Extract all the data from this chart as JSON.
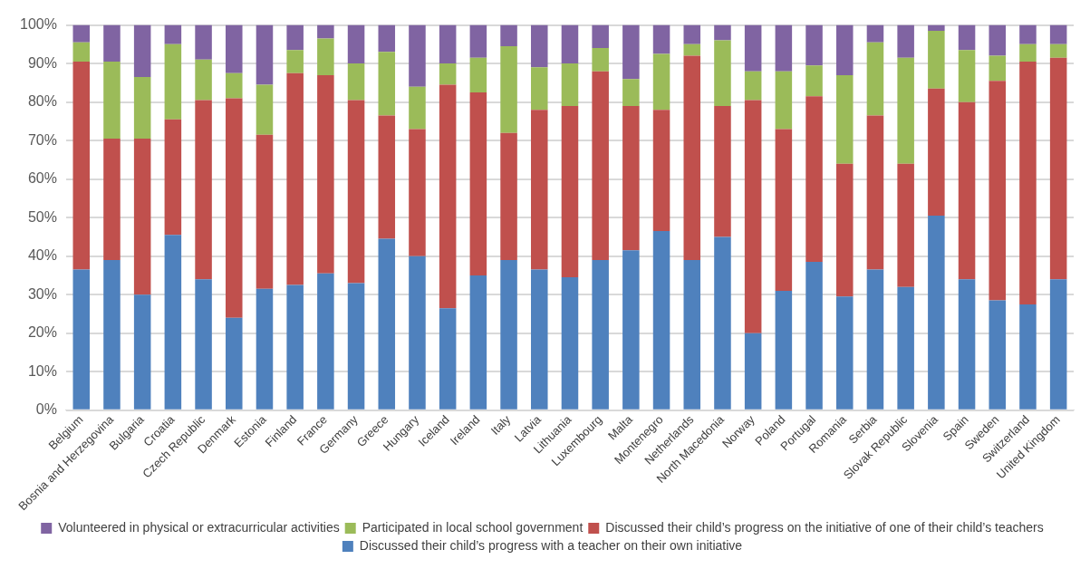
{
  "chart_data": {
    "type": "bar",
    "stacked": true,
    "grid": "y",
    "legend": "bottom",
    "categories": [
      "Belgium",
      "Bosnia and Herzegovina",
      "Bulgaria",
      "Croatia",
      "Czech Republic",
      "Denmark",
      "Estonia",
      "Finland",
      "France",
      "Germany",
      "Greece",
      "Hungary",
      "Iceland",
      "Ireland",
      "Italy",
      "Latvia",
      "Lithuania",
      "Luxembourg",
      "Malta",
      "Montenegro",
      "Netherlands",
      "North Macedonia",
      "Norway",
      "Poland",
      "Portugal",
      "Romania",
      "Serbia",
      "Slovak Republic",
      "Slovenia",
      "Spain",
      "Sweden",
      "Switzerland",
      "United Kingdom"
    ],
    "ylim": [
      0,
      100
    ],
    "yticks": [
      {
        "value": 0,
        "label": "0%"
      },
      {
        "value": 10,
        "label": "10%"
      },
      {
        "value": 20,
        "label": "20%"
      },
      {
        "value": 30,
        "label": "30%"
      },
      {
        "value": 40,
        "label": "40%"
      },
      {
        "value": 50,
        "label": "50%"
      },
      {
        "value": 60,
        "label": "60%"
      },
      {
        "value": 70,
        "label": "70%"
      },
      {
        "value": 80,
        "label": "80%"
      },
      {
        "value": 90,
        "label": "90%"
      },
      {
        "value": 100,
        "label": "100%"
      }
    ],
    "series": [
      {
        "name": "Discussed their child’s progress with a teacher on their own initiative",
        "color": "#4f81bd",
        "values": [
          36.5,
          39,
          30,
          45.5,
          34,
          24,
          31.5,
          32.5,
          35.5,
          33,
          44.5,
          40,
          26.5,
          35,
          39,
          36.5,
          34.5,
          39,
          41.5,
          46.5,
          39,
          45,
          20,
          31,
          38.5,
          29.5,
          36.5,
          32,
          50.5,
          34,
          28.5,
          27.5,
          34
        ]
      },
      {
        "name": "Discussed their child’s progress on the initiative of one of their child’s teachers",
        "color": "#c0504d",
        "values": [
          54,
          31.5,
          40.5,
          30,
          46.5,
          57,
          40,
          55,
          51.5,
          47.5,
          32,
          33,
          58,
          47.5,
          33,
          41.5,
          44.5,
          49,
          37.5,
          31.5,
          53,
          34,
          60.5,
          42,
          43,
          34.5,
          40,
          32,
          33,
          46,
          57,
          63,
          57.5
        ]
      },
      {
        "name": "Participated in local school government",
        "color": "#9bbb59",
        "values": [
          5,
          20,
          16,
          19.5,
          10.5,
          6.5,
          13,
          6,
          9.5,
          9.5,
          16.5,
          11,
          5.5,
          9,
          22.5,
          11,
          11,
          6,
          7,
          14.5,
          3,
          17,
          7.5,
          15,
          8,
          23,
          19,
          27.5,
          15,
          13.5,
          6.5,
          4.5,
          3.5
        ]
      },
      {
        "name": "Volunteered in physical or extracurricular activities",
        "color": "#8064a2",
        "values": [
          4.5,
          9.5,
          13.5,
          5,
          9,
          12.5,
          15.5,
          6.5,
          3.5,
          10,
          7,
          16,
          10,
          8.5,
          5.5,
          11,
          10,
          6,
          14,
          7.5,
          5,
          4,
          12,
          12,
          10.5,
          13,
          4.5,
          8.5,
          1.5,
          6.5,
          8,
          5,
          5
        ]
      }
    ]
  }
}
